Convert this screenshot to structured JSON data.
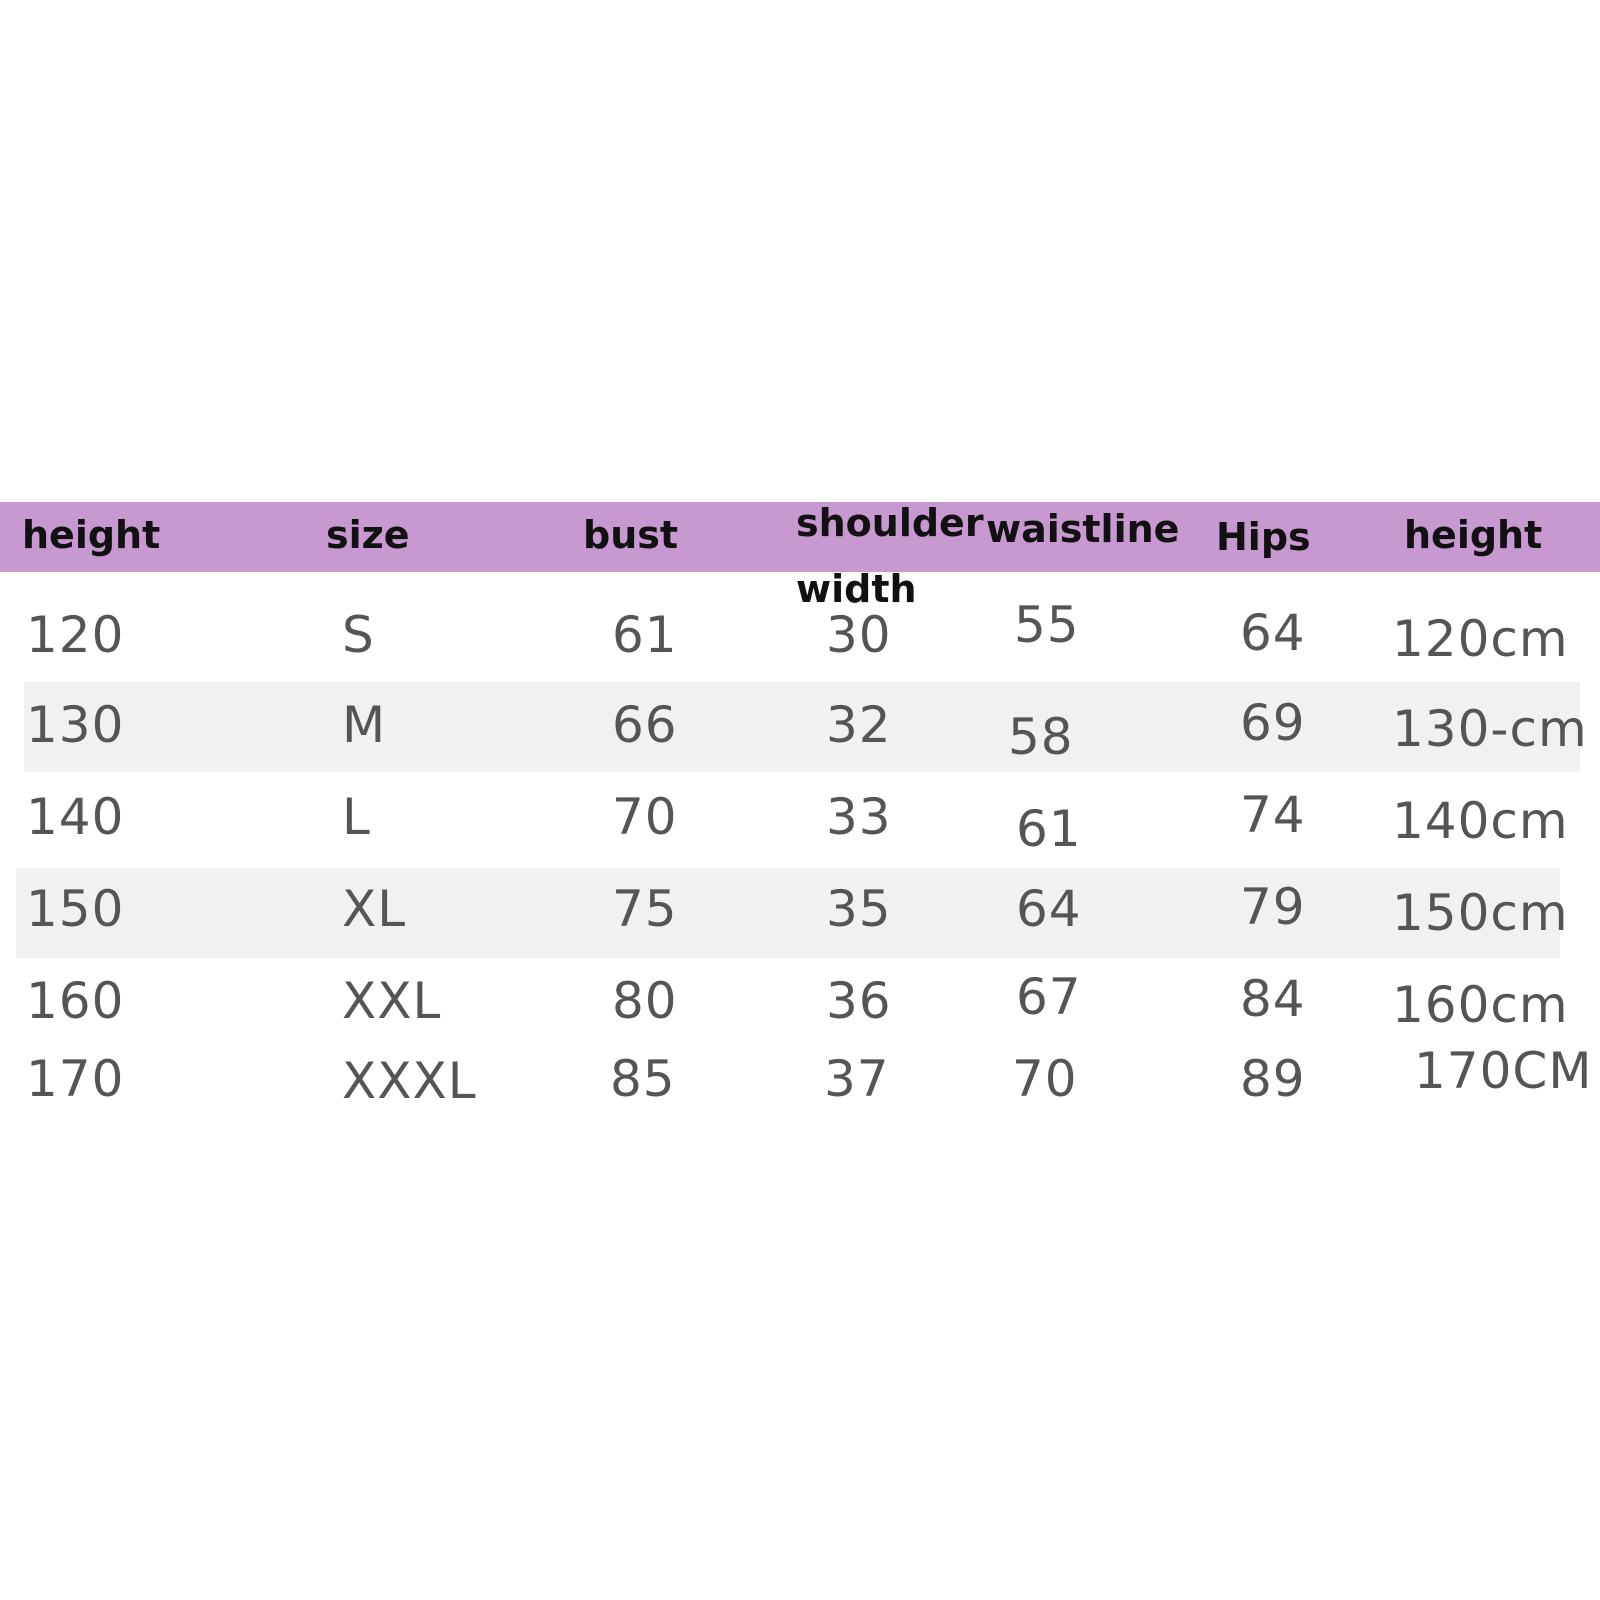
{
  "colors": {
    "header_background": "#c898d0",
    "stripe_background": "#f1f1f1",
    "header_text": "#111111",
    "value_text": "#555555"
  },
  "headers": {
    "height_left": "height",
    "size": "size",
    "bust": "bust",
    "shoulder_line1": "shoulder",
    "shoulder_line2": "width",
    "waistline": "waistline",
    "hips": "Hips",
    "height_right": "height"
  },
  "rows": [
    {
      "height": "120",
      "size": "S",
      "bust": "61",
      "shoulder": "30",
      "waist": "55",
      "hips": "64",
      "height_cm": "120cm"
    },
    {
      "height": "130",
      "size": "M",
      "bust": "66",
      "shoulder": "32",
      "waist": "58",
      "hips": "69",
      "height_cm": "130-cm"
    },
    {
      "height": "140",
      "size": "L",
      "bust": "70",
      "shoulder": "33",
      "waist": "61",
      "hips": "74",
      "height_cm": "140cm"
    },
    {
      "height": "150",
      "size": "XL",
      "bust": "75",
      "shoulder": "35",
      "waist": "64",
      "hips": "79",
      "height_cm": "150cm"
    },
    {
      "height": "160",
      "size": "XXL",
      "bust": "80",
      "shoulder": "36",
      "waist": "67",
      "hips": "84",
      "height_cm": "160cm"
    },
    {
      "height": "170",
      "size": "XXXL",
      "bust": "85",
      "shoulder": "37",
      "waist": "70",
      "hips": "89",
      "height_cm": "170CM"
    }
  ]
}
